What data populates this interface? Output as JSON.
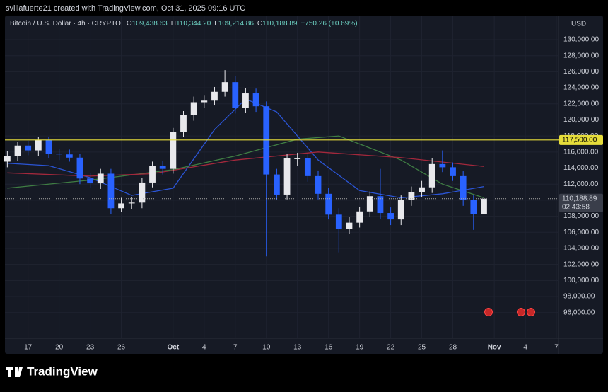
{
  "header": {
    "credit": "svillafuerte21 created with TradingView.com, Oct 31, 2025 09:16 UTC",
    "symbol": "Bitcoin / U.S. Dollar · 4h · CRYPTO",
    "ohlc": [
      {
        "label": "O",
        "value": "109,438.63"
      },
      {
        "label": "H",
        "value": "110,344.20"
      },
      {
        "label": "L",
        "value": "109,214.86"
      },
      {
        "label": "C",
        "value": "110,188.89"
      }
    ],
    "change": "+750.26 (+0.69%)"
  },
  "chart_data": {
    "type": "candlestick",
    "currency": "USD",
    "x": [
      -2,
      -1,
      0,
      1,
      2,
      3,
      4,
      5,
      6,
      7,
      8,
      9,
      10,
      11,
      12,
      13,
      14,
      15,
      16,
      17,
      18,
      19,
      20,
      21,
      22,
      23,
      24,
      25,
      26,
      27,
      28,
      29,
      30,
      31,
      32,
      33,
      34,
      35,
      36,
      37,
      38,
      39,
      40,
      41,
      42,
      43,
      44
    ],
    "open": [
      114800,
      115500,
      116800,
      116200,
      117500,
      115800,
      115700,
      115300,
      112700,
      112100,
      113300,
      109000,
      109600,
      109700,
      112200,
      114300,
      113900,
      118500,
      120600,
      122200,
      122400,
      123500,
      124700,
      121500,
      123300,
      121700,
      113200,
      110700,
      115200,
      115200,
      113000,
      110800,
      108200,
      106400,
      107200,
      108600,
      110500,
      108400,
      107600,
      110000,
      111000,
      111600,
      114500,
      114100,
      113000,
      110000,
      108300
    ],
    "high": [
      116100,
      117300,
      117400,
      117900,
      117900,
      116400,
      116300,
      115800,
      113400,
      113900,
      113900,
      110300,
      110400,
      112800,
      114800,
      114900,
      119000,
      121100,
      122900,
      123100,
      124100,
      126200,
      125500,
      124000,
      123900,
      122300,
      113900,
      115800,
      115900,
      115700,
      113700,
      111500,
      109000,
      107900,
      109200,
      111100,
      113900,
      109100,
      110600,
      111700,
      112400,
      115200,
      116200,
      114700,
      113600,
      110600,
      110500
    ],
    "low": [
      114100,
      114900,
      115600,
      115500,
      115200,
      115000,
      114800,
      112000,
      111500,
      111400,
      108300,
      108500,
      108900,
      109000,
      111600,
      113200,
      113300,
      117900,
      119900,
      121500,
      121800,
      122900,
      120800,
      120900,
      121000,
      103000,
      110000,
      110100,
      114300,
      112300,
      110100,
      107600,
      103500,
      105800,
      106600,
      107900,
      107700,
      106900,
      106900,
      109300,
      110400,
      110900,
      113500,
      112400,
      109300,
      106300,
      108100
    ],
    "close": [
      115500,
      116800,
      116200,
      117500,
      115800,
      115700,
      115300,
      112700,
      112100,
      113300,
      109000,
      109600,
      109700,
      112200,
      114300,
      113900,
      118500,
      120600,
      122200,
      122400,
      123500,
      124700,
      121500,
      123300,
      121700,
      113200,
      110700,
      115200,
      115200,
      113000,
      110800,
      108200,
      106400,
      107200,
      108600,
      110500,
      108400,
      107600,
      110000,
      111000,
      111600,
      114500,
      114100,
      113000,
      110000,
      108300,
      110188.89
    ],
    "up_color": "#e8e8ec",
    "down_color": "#2962ff",
    "series": [
      {
        "color": "#2b55d6",
        "x": [
          -2,
          2,
          6,
          10,
          14,
          18,
          21,
          24,
          28,
          32,
          36,
          40,
          44
        ],
        "values": [
          114600,
          114300,
          112800,
          110600,
          111500,
          118800,
          122600,
          121000,
          115000,
          111200,
          110300,
          110800,
          111700
        ]
      },
      {
        "color": "#3f7d43",
        "x": [
          -2,
          6,
          14,
          20,
          26,
          30,
          36,
          40,
          44
        ],
        "values": [
          111500,
          112500,
          113800,
          115500,
          117600,
          118000,
          115000,
          112000,
          110300
        ]
      },
      {
        "color": "#a3283c",
        "x": [
          -2,
          6,
          12,
          20,
          28,
          36,
          44
        ],
        "values": [
          113400,
          113000,
          113300,
          115000,
          116000,
          115300,
          114200
        ]
      }
    ],
    "level": {
      "value": 117500,
      "label": "117,500.00",
      "color": "#e6dd3b"
    },
    "price_line": {
      "value": 110188.89,
      "label": "110,188.89",
      "countdown": "02:43:58"
    },
    "xlim": [
      -2.23,
      51.2
    ],
    "xticks": [
      {
        "value": 0,
        "label": "17"
      },
      {
        "value": 3,
        "label": "20"
      },
      {
        "value": 6,
        "label": "23"
      },
      {
        "value": 9,
        "label": "26"
      },
      {
        "value": 14,
        "label": "Oct"
      },
      {
        "value": 17,
        "label": "4"
      },
      {
        "value": 20,
        "label": "7"
      },
      {
        "value": 23,
        "label": "10"
      },
      {
        "value": 26,
        "label": "13"
      },
      {
        "value": 29,
        "label": "16"
      },
      {
        "value": 32,
        "label": "19"
      },
      {
        "value": 35,
        "label": "22"
      },
      {
        "value": 38,
        "label": "25"
      },
      {
        "value": 41,
        "label": "28"
      },
      {
        "value": 45,
        "label": "Nov"
      },
      {
        "value": 48,
        "label": "4"
      },
      {
        "value": 51,
        "label": "7"
      }
    ],
    "ylim": [
      92800,
      133000
    ],
    "yticks": [
      {
        "value": 96000,
        "label": "96,000.00"
      },
      {
        "value": 98000,
        "label": "98,000.00"
      },
      {
        "value": 100000,
        "label": "100,000.00"
      },
      {
        "value": 102000,
        "label": "102,000.00"
      },
      {
        "value": 104000,
        "label": "104,000.00"
      },
      {
        "value": 106000,
        "label": "106,000.00"
      },
      {
        "value": 108000,
        "label": "108,000.00"
      },
      {
        "value": 110000,
        "label": "110,000.00"
      },
      {
        "value": 112000,
        "label": "112,000.00"
      },
      {
        "value": 114000,
        "label": "114,000.00"
      },
      {
        "value": 116000,
        "label": "116,000.00"
      },
      {
        "value": 118000,
        "label": "118,000.00"
      },
      {
        "value": 120000,
        "label": "120,000.00"
      },
      {
        "value": 122000,
        "label": "122,000.00"
      },
      {
        "value": 124000,
        "label": "124,000.00"
      },
      {
        "value": 126000,
        "label": "126,000.00"
      },
      {
        "value": 128000,
        "label": "128,000.00"
      },
      {
        "value": 130000,
        "label": "130,000.00"
      }
    ],
    "grid": true
  },
  "footer": {
    "brand": "TradingView"
  }
}
